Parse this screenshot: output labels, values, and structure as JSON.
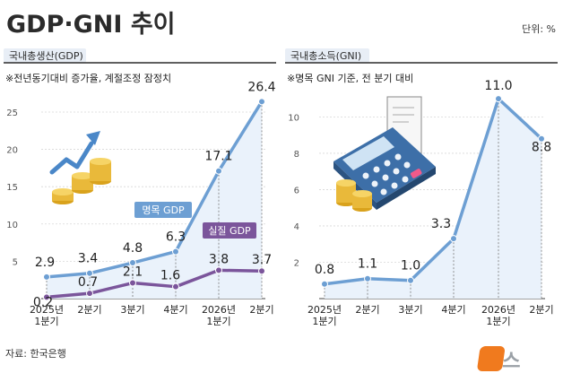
{
  "title": "GDP·GNI 추이",
  "unit": "단위: %",
  "source": "자료: 한국은행",
  "logo": {
    "text": "뉴스",
    "mark": "1"
  },
  "chart_data": [
    {
      "type": "line",
      "panel_label": "국내총생산(GDP)",
      "note": "※전년동기대비 증가율, 계절조정 잠정치",
      "categories": [
        [
          "2025년",
          "1분기"
        ],
        [
          "2분기"
        ],
        [
          "3분기"
        ],
        [
          "4분기"
        ],
        [
          "2026년",
          "1분기"
        ],
        [
          "2분기"
        ]
      ],
      "y_ticks": [
        "5",
        "10",
        "15",
        "20",
        "25"
      ],
      "ylim": [
        0,
        28
      ],
      "grid": true,
      "legend": "inline labels",
      "series": [
        {
          "name": "명목 GDP",
          "values": [
            2.9,
            3.4,
            4.8,
            6.3,
            17.1,
            26.4
          ],
          "labels": [
            "2.9",
            "3.4",
            "4.8",
            "6.3",
            "17.1",
            "26.4"
          ],
          "color": "#6d9fd3"
        },
        {
          "name": "실질 GDP",
          "values": [
            0.2,
            0.7,
            2.1,
            1.6,
            3.8,
            3.7
          ],
          "labels": [
            "0.2",
            "0.7",
            "2.1",
            "1.6",
            "3.8",
            "3.7"
          ],
          "color": "#7b559b"
        }
      ]
    },
    {
      "type": "line",
      "panel_label": "국내총소득(GNI)",
      "note": "※명목 GNI 기준, 전 분기 대비",
      "categories": [
        [
          "2025년",
          "1분기"
        ],
        [
          "2분기"
        ],
        [
          "3분기"
        ],
        [
          "4분기"
        ],
        [
          "2026년",
          "1분기"
        ],
        [
          "2분기"
        ]
      ],
      "y_ticks": [
        "2",
        "4",
        "6",
        "8",
        "10"
      ],
      "ylim": [
        0,
        11.5
      ],
      "grid": true,
      "series": [
        {
          "values": [
            0.8,
            1.1,
            1.0,
            3.3,
            11.0,
            8.8
          ],
          "labels": [
            "0.8",
            "1.1",
            "1.0",
            "3.3",
            "11.0",
            "8.8"
          ],
          "color": "#6d9fd3"
        }
      ]
    }
  ],
  "icons": [
    "growth-arrow-icon",
    "gold-coins-icon",
    "calculator-icon",
    "receipt-icon"
  ]
}
